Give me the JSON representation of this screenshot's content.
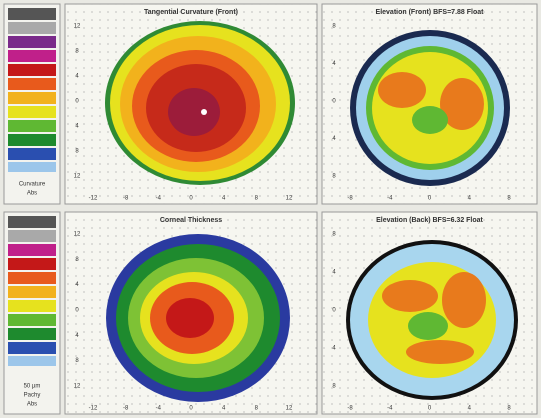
{
  "legends": [
    {
      "labels": [
        "Curvature",
        "Abs"
      ]
    },
    {
      "labels": [
        "50 µm",
        "Pachy",
        "Abs"
      ]
    }
  ],
  "panels": [
    {
      "title": "Tangential Curvature (Front)",
      "xticks": [
        "-12",
        "-8",
        "-4",
        "0",
        "4",
        "8",
        "12"
      ],
      "yticks": [
        "12",
        "8",
        "4",
        "0",
        "4",
        "8",
        "12"
      ]
    },
    {
      "title": "Elevation (Front) BFS=7.88 Float",
      "xticks": [
        "-8",
        "-4",
        "0",
        "4",
        "8"
      ],
      "yticks": [
        "8",
        "4",
        "0",
        "4",
        "8"
      ]
    },
    {
      "title": "Corneal Thickness",
      "xticks": [
        "-12",
        "-8",
        "-4",
        "0",
        "4",
        "8",
        "12"
      ],
      "yticks": [
        "12",
        "8",
        "4",
        "0",
        "4",
        "8",
        "12"
      ]
    },
    {
      "title": "Elevation (Back) BFS=6.32 Float",
      "xticks": [
        "-8",
        "-4",
        "0",
        "4",
        "8"
      ],
      "yticks": [
        "8",
        "4",
        "0",
        "4",
        "8"
      ]
    }
  ]
}
